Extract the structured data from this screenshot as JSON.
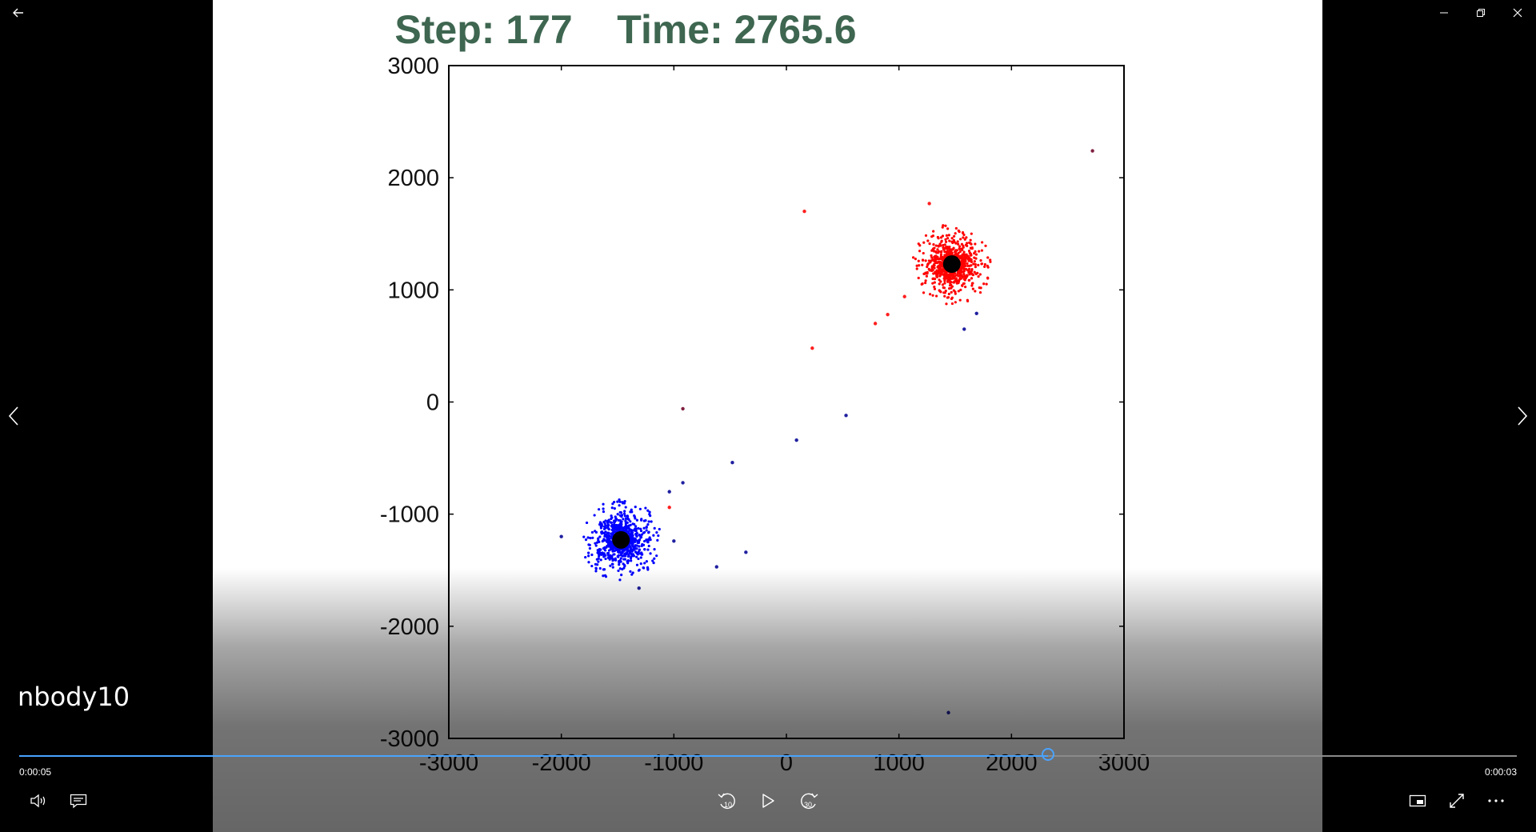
{
  "window": {
    "back_icon": "back-arrow-icon",
    "minimize_icon": "minimize-icon",
    "restore_icon": "restore-icon",
    "close_icon": "close-icon"
  },
  "video": {
    "title": "nbody10",
    "elapsed": "0:00:05",
    "remaining": "0:00:03",
    "progress_fraction": 0.687
  },
  "controls": {
    "volume_icon": "volume-icon",
    "captions_icon": "captions-icon",
    "skip_back_label": "10",
    "play_icon": "play-icon",
    "skip_forward_label": "30",
    "mini_view_icon": "mini-view-icon",
    "fullscreen_icon": "fullscreen-icon",
    "more_icon": "more-icon"
  },
  "colors": {
    "accent": "#4aa3ff",
    "title_text": "#3e6650",
    "cluster_a": "#0000ff",
    "cluster_b": "#ff0000",
    "core": "#000000"
  },
  "chart_data": {
    "type": "scatter",
    "title": "Step: 177    Time: 2765.6",
    "xlim": [
      -3000,
      3000
    ],
    "ylim": [
      -3000,
      3000
    ],
    "xticks": [
      -3000,
      -2000,
      -1000,
      0,
      1000,
      2000,
      3000
    ],
    "yticks": [
      -3000,
      -2000,
      -1000,
      0,
      1000,
      2000,
      3000
    ],
    "grid": false,
    "clusters": [
      {
        "name": "",
        "color": "#0000ff",
        "center": [
          -1470,
          -1230
        ],
        "radius": 360,
        "count": 900
      },
      {
        "name": "",
        "color": "#ff0000",
        "center": [
          1470,
          1230
        ],
        "radius": 360,
        "count": 900
      }
    ],
    "cores": [
      {
        "center": [
          -1470,
          -1230
        ]
      },
      {
        "center": [
          1470,
          1230
        ]
      }
    ],
    "stray_points": [
      {
        "x": 2720,
        "y": 2240,
        "color": "#802040"
      },
      {
        "x": 1270,
        "y": 1770,
        "color": "#ff2020"
      },
      {
        "x": 160,
        "y": 1700,
        "color": "#ff2020"
      },
      {
        "x": 1050,
        "y": 940,
        "color": "#ff2020"
      },
      {
        "x": 900,
        "y": 780,
        "color": "#ff2020"
      },
      {
        "x": 790,
        "y": 700,
        "color": "#ff2020"
      },
      {
        "x": 230,
        "y": 480,
        "color": "#ff2020"
      },
      {
        "x": 1690,
        "y": 790,
        "color": "#2020a0"
      },
      {
        "x": 1580,
        "y": 650,
        "color": "#2020a0"
      },
      {
        "x": -920,
        "y": -60,
        "color": "#802040"
      },
      {
        "x": 530,
        "y": -120,
        "color": "#2020a0"
      },
      {
        "x": 90,
        "y": -340,
        "color": "#2020a0"
      },
      {
        "x": -480,
        "y": -540,
        "color": "#2020a0"
      },
      {
        "x": -920,
        "y": -720,
        "color": "#2020a0"
      },
      {
        "x": -1040,
        "y": -800,
        "color": "#2020a0"
      },
      {
        "x": -1040,
        "y": -940,
        "color": "#ff2020"
      },
      {
        "x": -1000,
        "y": -1240,
        "color": "#2020a0"
      },
      {
        "x": -2000,
        "y": -1200,
        "color": "#2020a0"
      },
      {
        "x": -620,
        "y": -1470,
        "color": "#2020a0"
      },
      {
        "x": -360,
        "y": -1340,
        "color": "#2020a0"
      },
      {
        "x": -1310,
        "y": -1660,
        "color": "#2020a0"
      },
      {
        "x": 1440,
        "y": -2770,
        "color": "#2020a0"
      }
    ]
  }
}
